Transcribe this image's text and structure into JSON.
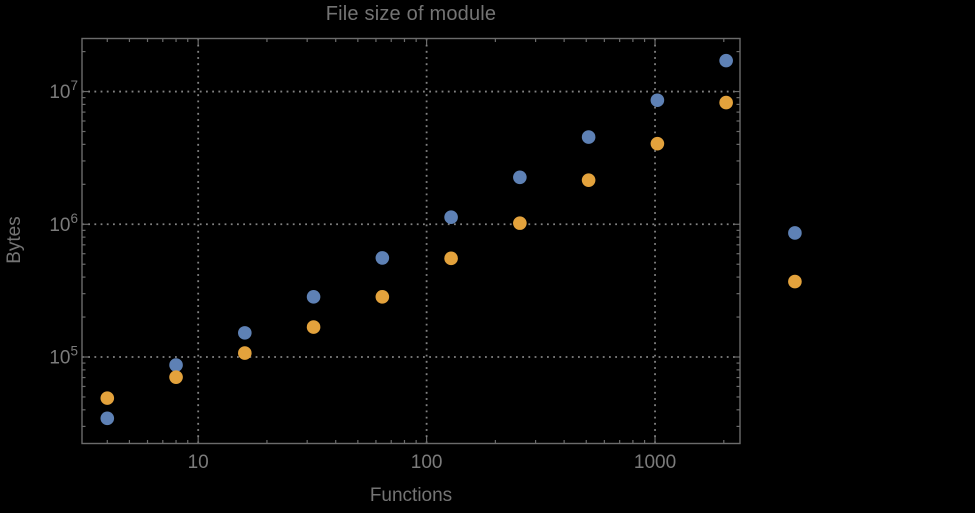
{
  "chart_data": {
    "type": "scatter",
    "title": "File size of module",
    "xlabel": "Functions",
    "ylabel": "Bytes",
    "x_scale": "log",
    "y_scale": "log",
    "grid": "dotted",
    "legend": "none",
    "x": [
      4,
      8,
      16,
      32,
      64,
      128,
      256,
      512,
      1024,
      2048,
      4096
    ],
    "series": [
      {
        "name": "blue",
        "color": "#5e81b5",
        "values": [
          34500,
          87000,
          152000,
          284000,
          558000,
          1130000,
          2260000,
          4540000,
          8600000,
          17100000,
          860000
        ]
      },
      {
        "name": "orange",
        "color": "#e3a23c",
        "values": [
          49000,
          70500,
          107000,
          168000,
          284000,
          554000,
          1020000,
          2150000,
          4050000,
          8260000,
          370000
        ]
      }
    ],
    "xlim": [
      3.1,
      2355
    ],
    "ylim": [
      22300,
      25100000
    ],
    "x_ticks": [
      {
        "value": 10,
        "label": "10"
      },
      {
        "value": 100,
        "label": "100"
      },
      {
        "value": 1000,
        "label": "1000"
      }
    ],
    "y_ticks": [
      {
        "value": 100000,
        "mantissa": "10",
        "exponent": "5"
      },
      {
        "value": 1000000,
        "mantissa": "10",
        "exponent": "6"
      },
      {
        "value": 10000000,
        "mantissa": "10",
        "exponent": "7"
      }
    ],
    "colors": {
      "background": "#000000",
      "frame": "#6b6b6b",
      "grid": "#828282",
      "tick_label": "#7b7b7b",
      "title": "#747474"
    }
  }
}
